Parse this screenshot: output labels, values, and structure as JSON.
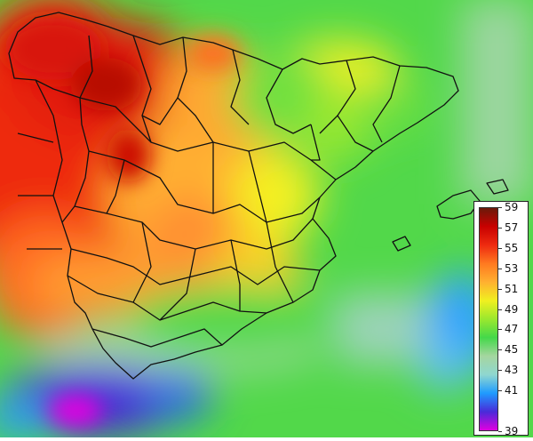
{
  "map": {
    "region": "Iberian Peninsula and Balearic Islands",
    "layer": "continuous colour field with province boundaries"
  },
  "legend": {
    "colors": [
      "#e000e0",
      "#4a2ad8",
      "#1f9bff",
      "#8fd7d0",
      "#a5d6a0",
      "#44d84a",
      "#9ae82e",
      "#f0f020",
      "#ffb030",
      "#ff7a20",
      "#ee2a10",
      "#c80000",
      "#6a1a0a"
    ],
    "labels": [
      {
        "value": "59",
        "frac": 0.0
      },
      {
        "value": "57",
        "frac": 0.0909
      },
      {
        "value": "55",
        "frac": 0.1818
      },
      {
        "value": "53",
        "frac": 0.2727
      },
      {
        "value": "51",
        "frac": 0.3636
      },
      {
        "value": "49",
        "frac": 0.4545
      },
      {
        "value": "47",
        "frac": 0.5455
      },
      {
        "value": "45",
        "frac": 0.6364
      },
      {
        "value": "43",
        "frac": 0.7273
      },
      {
        "value": "41",
        "frac": 0.8182
      },
      {
        "value": "39",
        "frac": 1.0
      }
    ]
  }
}
